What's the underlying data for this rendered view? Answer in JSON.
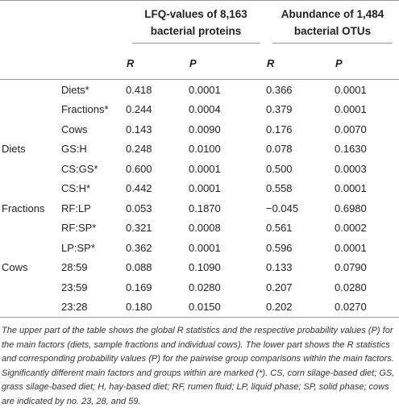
{
  "table": {
    "header": {
      "groups": [
        "LFQ-values of 8,163 bacterial proteins",
        "Abundance of 1,484 bacterial OTUs"
      ],
      "columns": [
        "R",
        "P",
        "R",
        "P"
      ]
    },
    "rows": [
      [
        null,
        "Diets*",
        "0.418",
        "0.0001",
        "0.366",
        "0.0001"
      ],
      [
        null,
        "Fractions*",
        "0.244",
        "0.0004",
        "0.379",
        "0.0001"
      ],
      [
        null,
        "Cows",
        "0.143",
        "0.0090",
        "0.176",
        "0.0070"
      ],
      [
        "Diets",
        "GS:H",
        "0.248",
        "0.0100",
        "0.078",
        "0.1630"
      ],
      [
        null,
        "CS:GS*",
        "0.600",
        "0.0001",
        "0.500",
        "0.0003"
      ],
      [
        null,
        "CS:H*",
        "0.442",
        "0.0001",
        "0.558",
        "0.0001"
      ],
      [
        "Fractions",
        "RF:LP",
        "0.053",
        "0.1870",
        "−0.045",
        "0.6980"
      ],
      [
        null,
        "RF:SP*",
        "0.321",
        "0.0008",
        "0.561",
        "0.0002"
      ],
      [
        null,
        "LP:SP*",
        "0.362",
        "0.0001",
        "0.596",
        "0.0001"
      ],
      [
        "Cows",
        "28:59",
        "0.088",
        "0.1090",
        "0.133",
        "0.0790"
      ],
      [
        null,
        "23:59",
        "0.169",
        "0.0280",
        "0.207",
        "0.0280"
      ],
      [
        null,
        "23:28",
        "0.180",
        "0.0150",
        "0.202",
        "0.0270"
      ]
    ],
    "footnote": "The upper part of the table shows the global R statistics and the respective probability values (P) for the main factors (diets, sample fractions and individual cows). The lower part shows the R statistics and corresponding probability values (P) for the pairwise group comparisons within the main factors. Significantly different main factors and groups within are marked (*). CS, corn silage-based diet; GS, grass silage-based diet; H, hay-based diet; RF, rumen fluid; LP, liquid phase; SP, solid phase; cows are indicated by no. 23, 28, and 59."
  }
}
